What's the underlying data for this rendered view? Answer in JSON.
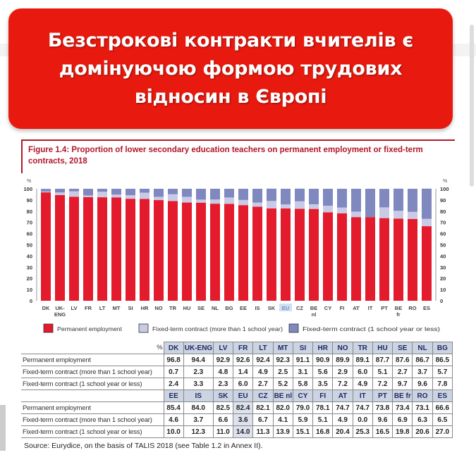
{
  "banner": {
    "title": "Безстрокові контракти вчителів є домінуючою формою трудових відносин в Європі"
  },
  "figure": {
    "title": "Figure 1.4: Proportion of lower secondary education teachers on permanent employment or fixed-term contracts, 2018"
  },
  "chart_data": {
    "type": "bar",
    "stacked": true,
    "categories": [
      "DK",
      "UK-ENG",
      "LV",
      "FR",
      "LT",
      "MT",
      "SI",
      "HR",
      "NO",
      "TR",
      "HU",
      "SE",
      "NL",
      "BG",
      "EE",
      "IS",
      "SK",
      "EU",
      "CZ",
      "BE nl",
      "CY",
      "FI",
      "AT",
      "IT",
      "PT",
      "BE fr",
      "RO",
      "ES"
    ],
    "series": [
      {
        "name": "Permanent employment",
        "color": "#e31b2d",
        "values": [
          96.8,
          94.4,
          92.9,
          92.6,
          92.4,
          92.3,
          91.1,
          90.9,
          89.9,
          89.1,
          87.7,
          87.6,
          86.7,
          86.5,
          85.4,
          84.0,
          82.5,
          82.4,
          82.1,
          82.0,
          79.0,
          78.1,
          74.7,
          74.7,
          73.8,
          73.4,
          73.1,
          66.6
        ]
      },
      {
        "name": "Fixed-term contract (more than 1 school year)",
        "color": "#c9cbe6",
        "values": [
          0.7,
          2.3,
          4.8,
          1.4,
          4.9,
          2.5,
          3.1,
          5.6,
          2.9,
          6.0,
          5.1,
          2.7,
          3.7,
          5.7,
          4.6,
          3.7,
          6.6,
          3.6,
          6.7,
          4.1,
          5.9,
          5.1,
          4.9,
          0.0,
          9.6,
          6.9,
          6.3,
          6.5
        ]
      },
      {
        "name": "Fixed-term contract (1 school year or less)",
        "color": "#8088c0",
        "values": [
          2.4,
          3.3,
          2.3,
          6.0,
          2.7,
          5.2,
          5.8,
          3.5,
          7.2,
          4.9,
          7.2,
          9.7,
          9.6,
          7.8,
          10.0,
          12.3,
          11.0,
          14.0,
          11.3,
          13.9,
          15.1,
          16.8,
          20.4,
          25.3,
          16.5,
          19.8,
          20.6,
          27.0
        ]
      }
    ],
    "ylim": [
      0,
      100
    ],
    "yticks": [
      0,
      10,
      20,
      30,
      40,
      50,
      60,
      70,
      80,
      90,
      100
    ],
    "yunit": "%",
    "highlight": "EU",
    "legend": "bottom"
  },
  "table": {
    "unit": "%",
    "row_labels": [
      "Permanent employment",
      "Fixed-term contract (more than 1 school year)",
      "Fixed-term contract (1 school year or less)"
    ]
  },
  "source": "Source: Eurydice, on the basis of TALIS 2018 (see Table 1.2 in Annex II)."
}
